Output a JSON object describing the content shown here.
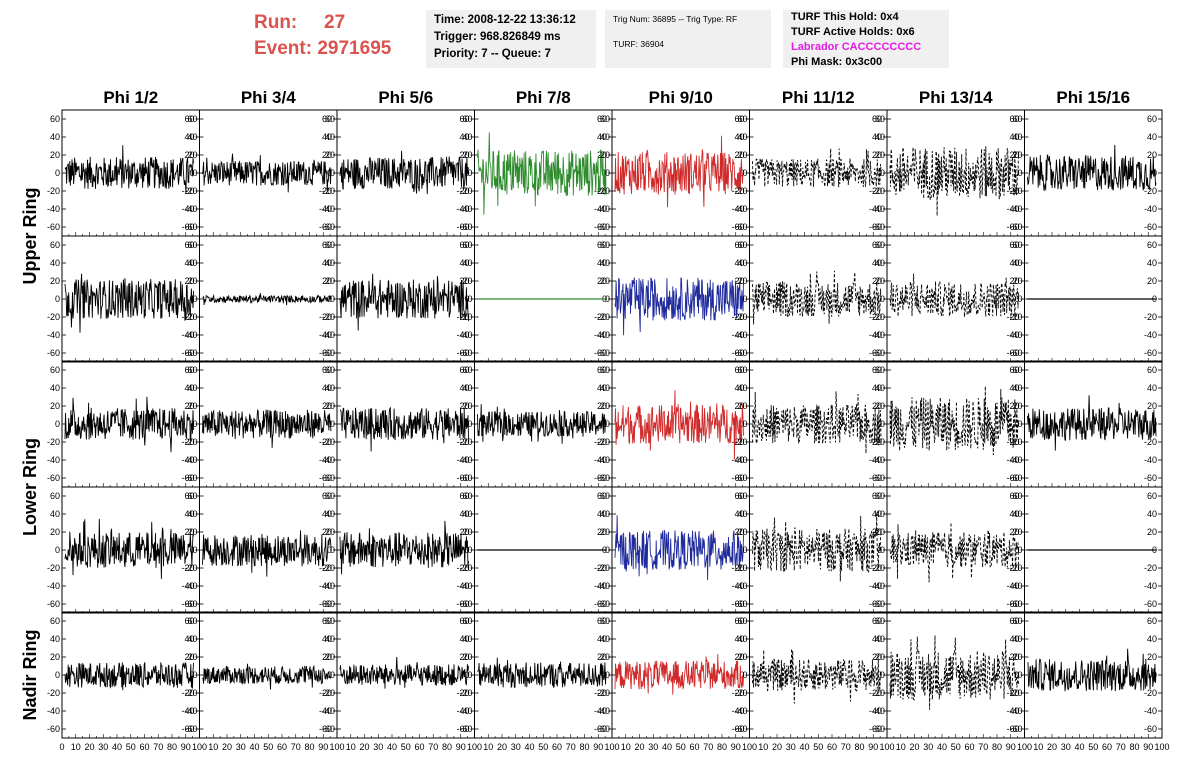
{
  "header": {
    "run_label": "Run:",
    "run_value": "27",
    "event_label": "Event:",
    "event_value": "2971695",
    "time": "Time: 2008-12-22 13:36:12",
    "trigger": "Trigger: 968.826849 ms",
    "priority_queue": "Priority: 7 -- Queue: 7",
    "trig_num_type": "Trig Num: 36895 -- Trig Type: RF",
    "turf": "TURF: 36904",
    "turf_this_hold": "TURF This Hold: 0x4",
    "turf_active_holds": "TURF Active Holds: 0x6",
    "labrador": "Labrador CACCCCCCCC",
    "phi_mask": "Phi Mask: 0x3c00"
  },
  "colors": {
    "run_info": "#d9534f",
    "labrador": "#e21de2",
    "green_trace": "#2e8b2e",
    "red_trace": "#d02a2a",
    "blue_trace": "#1f2a9c",
    "black_trace": "#000000"
  },
  "chart_data": {
    "type": "line",
    "description_grid": "8 columns x 5 rows of waveform panels",
    "columns": [
      "Phi 1/2",
      "Phi 3/4",
      "Phi 5/6",
      "Phi 7/8",
      "Phi 9/10",
      "Phi 11/12",
      "Phi 13/14",
      "Phi 15/16"
    ],
    "row_groups": [
      {
        "label": "Upper Ring",
        "rows": 2
      },
      {
        "label": "Lower Ring",
        "rows": 2
      },
      {
        "label": "Nadir Ring",
        "rows": 1
      }
    ],
    "ylim": [
      -70,
      70
    ],
    "xlim": [
      0,
      100
    ],
    "y_ticks": [
      "60",
      "40",
      "20",
      "0",
      "-20",
      "-40",
      "-60"
    ],
    "x_ticks": [
      "0",
      "10",
      "20",
      "30",
      "40",
      "50",
      "60",
      "70",
      "80",
      "90",
      "100"
    ],
    "panels": [
      [
        {
          "style": "black",
          "amp": 18
        },
        {
          "style": "black",
          "amp": 14
        },
        {
          "style": "black",
          "amp": 18
        },
        {
          "style": "green",
          "amp": 26
        },
        {
          "style": "red",
          "amp": 24
        },
        {
          "style": "dashed",
          "amp": 16
        },
        {
          "style": "dashed",
          "amp": 30
        },
        {
          "style": "black",
          "amp": 20
        }
      ],
      [
        {
          "style": "black",
          "amp": 22
        },
        {
          "style": "black",
          "amp": 4
        },
        {
          "style": "black",
          "amp": 22
        },
        {
          "style": "flat-green",
          "amp": 0
        },
        {
          "style": "blue",
          "amp": 24
        },
        {
          "style": "dashed",
          "amp": 20
        },
        {
          "style": "dashed",
          "amp": 20
        },
        {
          "style": "flat-black",
          "amp": 0
        }
      ],
      [
        {
          "style": "black",
          "amp": 18
        },
        {
          "style": "black",
          "amp": 16
        },
        {
          "style": "black",
          "amp": 18
        },
        {
          "style": "black",
          "amp": 14
        },
        {
          "style": "red",
          "amp": 22
        },
        {
          "style": "dashed",
          "amp": 22
        },
        {
          "style": "dashed",
          "amp": 30
        },
        {
          "style": "black",
          "amp": 18
        }
      ],
      [
        {
          "style": "black",
          "amp": 20
        },
        {
          "style": "black",
          "amp": 18
        },
        {
          "style": "black",
          "amp": 20
        },
        {
          "style": "flat-black",
          "amp": 0
        },
        {
          "style": "blue",
          "amp": 22
        },
        {
          "style": "dashed",
          "amp": 24
        },
        {
          "style": "dashed",
          "amp": 20
        },
        {
          "style": "flat-black",
          "amp": 0
        }
      ],
      [
        {
          "style": "black",
          "amp": 14
        },
        {
          "style": "black",
          "amp": 10
        },
        {
          "style": "black",
          "amp": 12
        },
        {
          "style": "black",
          "amp": 14
        },
        {
          "style": "red",
          "amp": 16
        },
        {
          "style": "dashed",
          "amp": 18
        },
        {
          "style": "dashed",
          "amp": 28
        },
        {
          "style": "black",
          "amp": 18
        }
      ]
    ]
  }
}
